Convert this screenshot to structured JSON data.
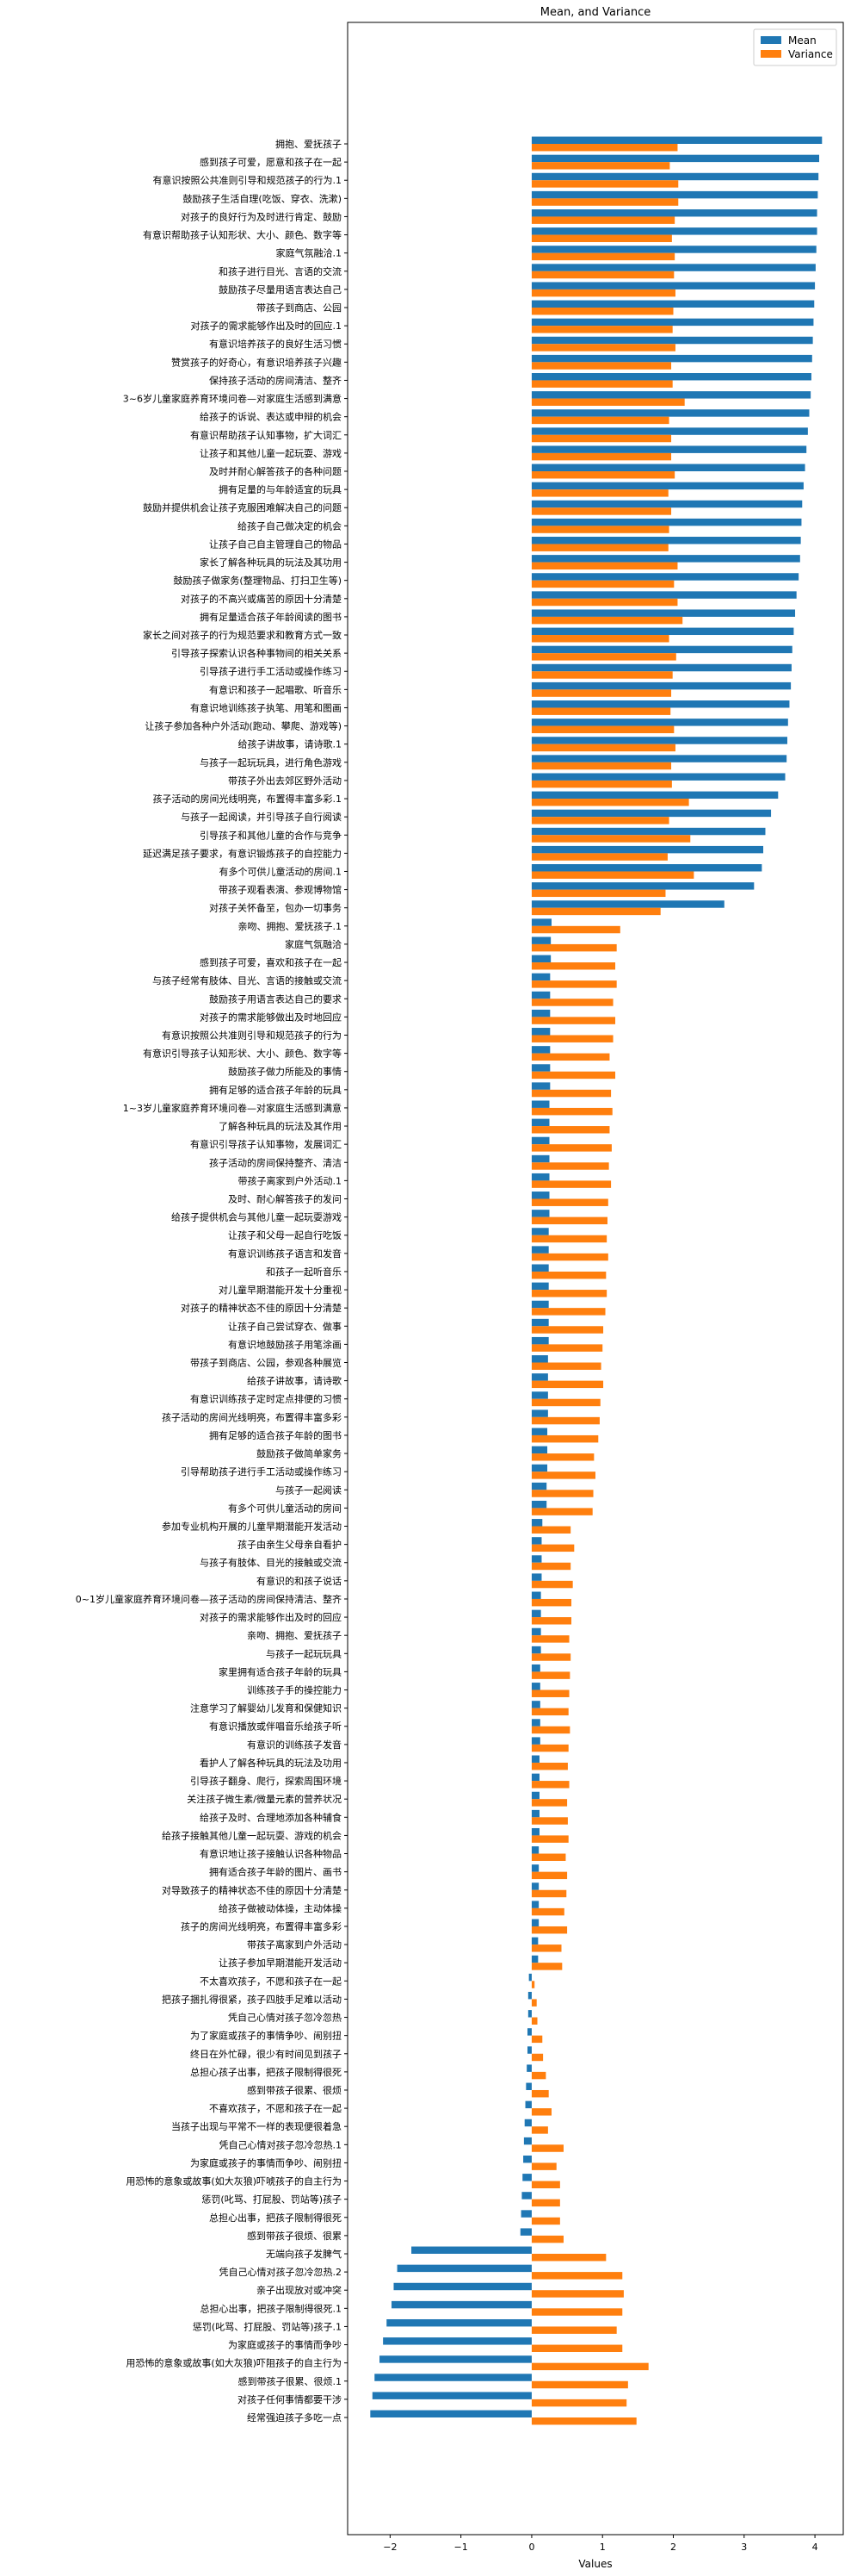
{
  "chart_data": {
    "type": "bar",
    "orientation": "horizontal",
    "title": "Mean, and Variance",
    "xlabel": "Values",
    "ylabel": "",
    "xlim": [
      -2.6,
      4.4
    ],
    "xticks": [
      -2,
      -1,
      0,
      1,
      2,
      3,
      4
    ],
    "grid": false,
    "legend_position": "top-right",
    "colors": {
      "Mean": "#1f77b4",
      "Variance": "#ff7f0e"
    },
    "categories": [
      "拥抱、爱抚孩子",
      "感到孩子可爱，愿意和孩子在一起",
      "有意识按照公共准则引导和规范孩子的行为.1",
      "鼓励孩子生活自理(吃饭、穿衣、洗漱)",
      "对孩子的良好行为及时进行肯定、鼓励",
      "有意识帮助孩子认知形状、大小、颜色、数字等",
      "家庭气氛融洽.1",
      "和孩子进行目光、言语的交流",
      "鼓励孩子尽量用语言表达自己",
      "带孩子到商店、公园",
      "对孩子的需求能够作出及时的回应.1",
      "有意识培养孩子的良好生活习惯",
      "赞赏孩子的好奇心，有意识培养孩子兴趣",
      "保持孩子活动的房间清洁、整齐",
      "3~6岁儿童家庭养育环境问卷—对家庭生活感到满意",
      "给孩子的诉说、表达或申辩的机会",
      "有意识帮助孩子认知事物，扩大词汇",
      "让孩子和其他儿童一起玩耍、游戏",
      "及时并耐心解答孩子的各种问题",
      "拥有足量的与年龄适宜的玩具",
      "鼓励并提供机会让孩子克服困难解决自己的问题",
      "给孩子自己做决定的机会",
      "让孩子自己自主管理自己的物品",
      "家长了解各种玩具的玩法及其功用",
      "鼓励孩子做家务(整理物品、打扫卫生等)",
      "对孩子的不高兴或痛苦的原因十分清楚",
      "拥有足量适合孩子年龄阅读的图书",
      "家长之间对孩子的行为规范要求和教育方式一致",
      "引导孩子探索认识各种事物间的相关关系",
      "引导孩子进行手工活动或操作练习",
      "有意识和孩子一起唱歌、听音乐",
      "有意识地训练孩子执笔、用笔和图画",
      "让孩子参加各种户外活动(跑动、攀爬、游戏等)",
      "给孩子讲故事，请诗歌.1",
      "与孩子一起玩玩具，进行角色游戏",
      "带孩子外出去郊区野外活动",
      "孩子活动的房间光线明亮，布置得丰富多彩.1",
      "与孩子一起阅读，并引导孩子自行阅读",
      "引导孩子和其他儿童的合作与竞争",
      "延迟满足孩子要求，有意识锻炼孩子的自控能力",
      "有多个可供儿童活动的房间.1",
      "带孩子观看表演、参观博物馆",
      "对孩子关怀备至，包办一切事务",
      "亲吻、拥抱、爱抚孩子.1",
      "家庭气氛融洽",
      "感到孩子可爱，喜欢和孩子在一起",
      "与孩子经常有肢体、目光、言语的接触或交流",
      "鼓励孩子用语言表达自己的要求",
      "对孩子的需求能够做出及时地回应",
      "有意识按照公共准则引导和规范孩子的行为",
      "有意识引导孩子认知形状、大小、颜色、数字等",
      "鼓励孩子做力所能及的事情",
      "拥有足够的适合孩子年龄的玩具",
      "1~3岁儿童家庭养育环境问卷—对家庭生活感到满意",
      "了解各种玩具的玩法及其作用",
      "有意识引导孩子认知事物，发展词汇",
      "孩子活动的房间保持整齐、清洁",
      "带孩子离家到户外活动.1",
      "及时、耐心解答孩子的发问",
      "给孩子提供机会与其他儿童一起玩耍游戏",
      "让孩子和父母一起自行吃饭",
      "有意识训练孩子语言和发音",
      "和孩子一起听音乐",
      "对儿童早期潜能开发十分重视",
      "对孩子的精神状态不佳的原因十分清楚",
      "让孩子自己尝试穿衣、做事",
      "有意识地鼓励孩子用笔涂画",
      "带孩子到商店、公园，参观各种展览",
      "给孩子讲故事，请诗歌",
      "有意识训练孩子定时定点排便的习惯",
      "孩子活动的房间光线明亮，布置得丰富多彩",
      "拥有足够的适合孩子年龄的图书",
      "鼓励孩子做简单家务",
      "引导帮助孩子进行手工活动或操作练习",
      "与孩子一起阅读",
      "有多个可供儿童活动的房间",
      "参加专业机构开展的儿童早期潜能开发活动",
      "孩子由亲生父母亲自看护",
      "与孩子有肢体、目光的接触或交流",
      "有意识的和孩子说话",
      "0~1岁儿童家庭养育环境问卷—孩子活动的房间保持清洁、整齐",
      "对孩子的需求能够作出及时的回应",
      "亲吻、拥抱、爱抚孩子",
      "与孩子一起玩玩具",
      "家里拥有适合孩子年龄的玩具",
      "训练孩子手的操控能力",
      "注意学习了解婴幼儿发育和保健知识",
      "有意识播放或伴唱音乐给孩子听",
      "有意识的训练孩子发音",
      "看护人了解各种玩具的玩法及功用",
      "引导孩子翻身、爬行，探索周围环境",
      "关注孩子微生素/微量元素的营养状况",
      "给孩子及时、合理地添加各种辅食",
      "给孩子接触其他儿童一起玩耍、游戏的机会",
      "有意识地让孩子接触认识各种物品",
      "拥有适合孩子年龄的图片、画书",
      "对导致孩子的精神状态不佳的原因十分清楚",
      "给孩子做被动体操，主动体操",
      "孩子的房间光线明亮，布置得丰富多彩",
      "带孩子离家到户外活动",
      "让孩子参加早期潜能开发活动",
      "不太喜欢孩子，不愿和孩子在一起",
      "把孩子捆扎得很紧，孩子四肢手足难以活动",
      "凭自己心情对孩子忽冷忽热",
      "为了家庭或孩子的事情争吵、闹别扭",
      "终日在外忙碌，很少有时间见到孩子",
      "总担心孩子出事，把孩子限制得很死",
      "感到带孩子很累、很烦",
      "不喜欢孩子，不愿和孩子在一起",
      "当孩子出现与平常不一样的表现便很着急",
      "凭自己心情对孩子忽冷忽热.1",
      "为家庭或孩子的事情而争吵、闹别扭",
      "用恐怖的意象或故事(如大灰狼)吓唬孩子的自主行为",
      "惩罚(叱骂、打屁股、罚站等)孩子",
      "总担心出事，把孩子限制得很死",
      "感到带孩子很烦、很累",
      "无端向孩子发脾气",
      "凭自己心情对孩子忽冷忽热.2",
      "亲子出现放对或冲突",
      "总担心出事，把孩子限制得很死.1",
      "惩罚(叱骂、打屁股、罚站等)孩子.1",
      "为家庭或孩子的事情而争吵",
      "用恐怖的意象或故事(如大灰狼)吓阻孩子的自主行为",
      "感到带孩子很累、很烦.1",
      "对孩子任何事情都要干涉",
      "经常强迫孩子多吃一点"
    ],
    "series": [
      {
        "name": "Mean",
        "values": [
          4.1,
          4.06,
          4.05,
          4.04,
          4.03,
          4.03,
          4.02,
          4.01,
          4.0,
          3.99,
          3.98,
          3.97,
          3.96,
          3.95,
          3.94,
          3.92,
          3.9,
          3.88,
          3.86,
          3.84,
          3.82,
          3.81,
          3.8,
          3.79,
          3.77,
          3.74,
          3.72,
          3.7,
          3.68,
          3.67,
          3.66,
          3.64,
          3.62,
          3.61,
          3.6,
          3.58,
          3.48,
          3.38,
          3.3,
          3.27,
          3.25,
          3.14,
          2.72,
          0.28,
          0.27,
          0.27,
          0.26,
          0.26,
          0.26,
          0.26,
          0.26,
          0.26,
          0.26,
          0.25,
          0.25,
          0.25,
          0.25,
          0.25,
          0.25,
          0.25,
          0.24,
          0.24,
          0.24,
          0.24,
          0.24,
          0.24,
          0.24,
          0.23,
          0.23,
          0.23,
          0.23,
          0.22,
          0.22,
          0.22,
          0.21,
          0.21,
          0.15,
          0.14,
          0.14,
          0.14,
          0.13,
          0.13,
          0.13,
          0.13,
          0.12,
          0.12,
          0.12,
          0.12,
          0.12,
          0.11,
          0.11,
          0.11,
          0.11,
          0.11,
          0.1,
          0.1,
          0.1,
          0.1,
          0.1,
          0.09,
          0.09,
          -0.04,
          -0.05,
          -0.05,
          -0.06,
          -0.06,
          -0.07,
          -0.08,
          -0.09,
          -0.1,
          -0.11,
          -0.12,
          -0.13,
          -0.14,
          -0.15,
          -0.16,
          -1.7,
          -1.9,
          -1.95,
          -1.98,
          -2.05,
          -2.1,
          -2.15,
          -2.22,
          -2.25,
          -2.28
        ]
      },
      {
        "name": "Variance",
        "values": [
          2.06,
          1.95,
          2.07,
          2.07,
          2.02,
          1.98,
          2.02,
          2.01,
          2.03,
          2.0,
          1.99,
          2.03,
          1.97,
          1.99,
          2.16,
          1.94,
          1.97,
          1.97,
          2.02,
          1.93,
          1.97,
          1.94,
          1.93,
          2.06,
          2.01,
          2.06,
          2.13,
          1.94,
          2.04,
          1.99,
          1.97,
          1.96,
          2.01,
          2.03,
          1.97,
          1.98,
          2.22,
          1.94,
          2.24,
          1.92,
          2.29,
          1.89,
          1.82,
          1.25,
          1.2,
          1.18,
          1.2,
          1.15,
          1.18,
          1.15,
          1.1,
          1.18,
          1.12,
          1.14,
          1.1,
          1.13,
          1.09,
          1.12,
          1.08,
          1.07,
          1.06,
          1.08,
          1.05,
          1.06,
          1.04,
          1.01,
          1.0,
          0.98,
          1.01,
          0.97,
          0.96,
          0.94,
          0.88,
          0.9,
          0.87,
          0.86,
          0.55,
          0.6,
          0.55,
          0.58,
          0.56,
          0.56,
          0.53,
          0.55,
          0.54,
          0.53,
          0.52,
          0.54,
          0.52,
          0.51,
          0.53,
          0.5,
          0.51,
          0.52,
          0.48,
          0.5,
          0.49,
          0.46,
          0.5,
          0.42,
          0.43,
          0.04,
          0.07,
          0.08,
          0.15,
          0.16,
          0.2,
          0.24,
          0.28,
          0.23,
          0.45,
          0.35,
          0.4,
          0.4,
          0.4,
          0.45,
          1.05,
          1.28,
          1.3,
          1.28,
          1.2,
          1.28,
          1.65,
          1.36,
          1.34,
          1.48
        ]
      }
    ]
  }
}
